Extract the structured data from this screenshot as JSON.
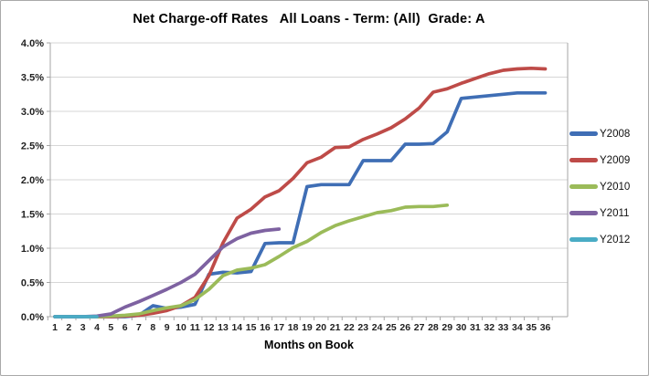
{
  "chart_data": {
    "type": "line",
    "title": "Net Charge-off Rates   All Loans - Term: (All)  Grade: A",
    "xlabel": "Months on Book",
    "ylabel": "",
    "x": [
      1,
      2,
      3,
      4,
      5,
      6,
      7,
      8,
      9,
      10,
      11,
      12,
      13,
      14,
      15,
      16,
      17,
      18,
      19,
      20,
      21,
      22,
      23,
      24,
      25,
      26,
      27,
      28,
      29,
      30,
      31,
      32,
      33,
      34,
      35,
      36
    ],
    "ylim": [
      0,
      4.0
    ],
    "ytick_step": 0.5,
    "ytick_labels": [
      "0.0%",
      "0.5%",
      "1.0%",
      "1.5%",
      "2.0%",
      "2.5%",
      "3.0%",
      "3.5%",
      "4.0%"
    ],
    "grid": true,
    "legend_position": "right",
    "series": [
      {
        "name": "Y2008",
        "color": "#3F6EB5",
        "values": [
          0,
          0,
          0,
          0,
          0,
          0,
          0.02,
          0.16,
          0.12,
          0.14,
          0.18,
          0.62,
          0.65,
          0.64,
          0.66,
          1.07,
          1.08,
          1.08,
          1.9,
          1.93,
          1.93,
          1.93,
          2.28,
          2.28,
          2.28,
          2.52,
          2.52,
          2.53,
          2.7,
          3.19,
          3.21,
          3.23,
          3.25,
          3.27,
          3.27,
          3.27
        ]
      },
      {
        "name": "Y2009",
        "color": "#BE4B48",
        "values": [
          0,
          0,
          0,
          0,
          0,
          0.01,
          0.02,
          0.05,
          0.09,
          0.16,
          0.28,
          0.6,
          1.08,
          1.44,
          1.57,
          1.75,
          1.84,
          2.02,
          2.25,
          2.33,
          2.47,
          2.48,
          2.59,
          2.67,
          2.76,
          2.89,
          3.05,
          3.28,
          3.33,
          3.41,
          3.48,
          3.55,
          3.6,
          3.62,
          3.63,
          3.62
        ]
      },
      {
        "name": "Y2010",
        "color": "#9BBB59",
        "values": [
          0,
          0,
          0,
          0,
          0.01,
          0.02,
          0.04,
          0.09,
          0.13,
          0.16,
          0.25,
          0.4,
          0.6,
          0.68,
          0.71,
          0.76,
          0.88,
          1.01,
          1.1,
          1.23,
          1.33,
          1.4,
          1.46,
          1.52,
          1.55,
          1.6,
          1.61,
          1.61,
          1.63
        ]
      },
      {
        "name": "Y2011",
        "color": "#7E62A1",
        "values": [
          0,
          0,
          0,
          0.01,
          0.04,
          0.14,
          0.22,
          0.31,
          0.4,
          0.5,
          0.62,
          0.82,
          1.02,
          1.14,
          1.22,
          1.26,
          1.28
        ]
      },
      {
        "name": "Y2012",
        "color": "#4AACC5",
        "values": [
          0,
          0,
          0,
          0
        ]
      }
    ]
  },
  "style_colors": {
    "gridline": "#d6d6d6",
    "axis": "#a6a6a6",
    "tick_text": "#1f1f1f"
  }
}
